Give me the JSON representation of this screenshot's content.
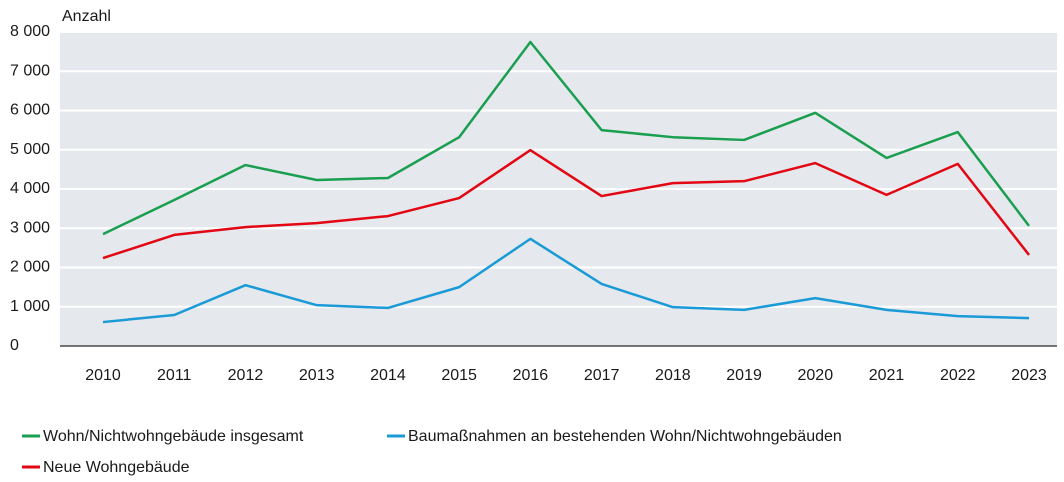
{
  "chart_data": {
    "type": "line",
    "y_label": "Anzahl",
    "categories": [
      "2010",
      "2011",
      "2012",
      "2013",
      "2014",
      "2015",
      "2016",
      "2017",
      "2018",
      "2019",
      "2020",
      "2021",
      "2022",
      "2023"
    ],
    "series": [
      {
        "name": "Wohn/Nichtwohngebäude insgesamt",
        "color": "#1a9e50",
        "values": [
          2850,
          3720,
          4610,
          4230,
          4280,
          5320,
          7745,
          5500,
          5320,
          5250,
          5940,
          4790,
          5450,
          3060
        ]
      },
      {
        "name": "Baumaßnahmen an bestehenden Wohn/Nichtwohngebäuden",
        "color": "#1a9ad6",
        "values": [
          610,
          790,
          1550,
          1040,
          970,
          1500,
          2730,
          1580,
          990,
          920,
          1220,
          920,
          760,
          710
        ]
      },
      {
        "name": "Neue Wohngebäude",
        "color": "#e30613",
        "values": [
          2240,
          2830,
          3030,
          3130,
          3310,
          3770,
          4990,
          3820,
          4150,
          4200,
          4660,
          3850,
          4640,
          2320
        ]
      }
    ],
    "ylim": [
      0,
      8000
    ],
    "yticks": [
      0,
      {
        "value": 1000,
        "label": "1 000"
      },
      {
        "value": 2000,
        "label": "2 000"
      },
      {
        "value": 3000,
        "label": "3 000"
      },
      {
        "value": 4000,
        "label": "4 000"
      },
      {
        "value": 5000,
        "label": "5 000"
      },
      {
        "value": 6000,
        "label": "6 000"
      },
      {
        "value": 7000,
        "label": "7 000"
      },
      {
        "value": 8000,
        "label": "8 000"
      }
    ],
    "grid": true,
    "legend": "bottom"
  }
}
